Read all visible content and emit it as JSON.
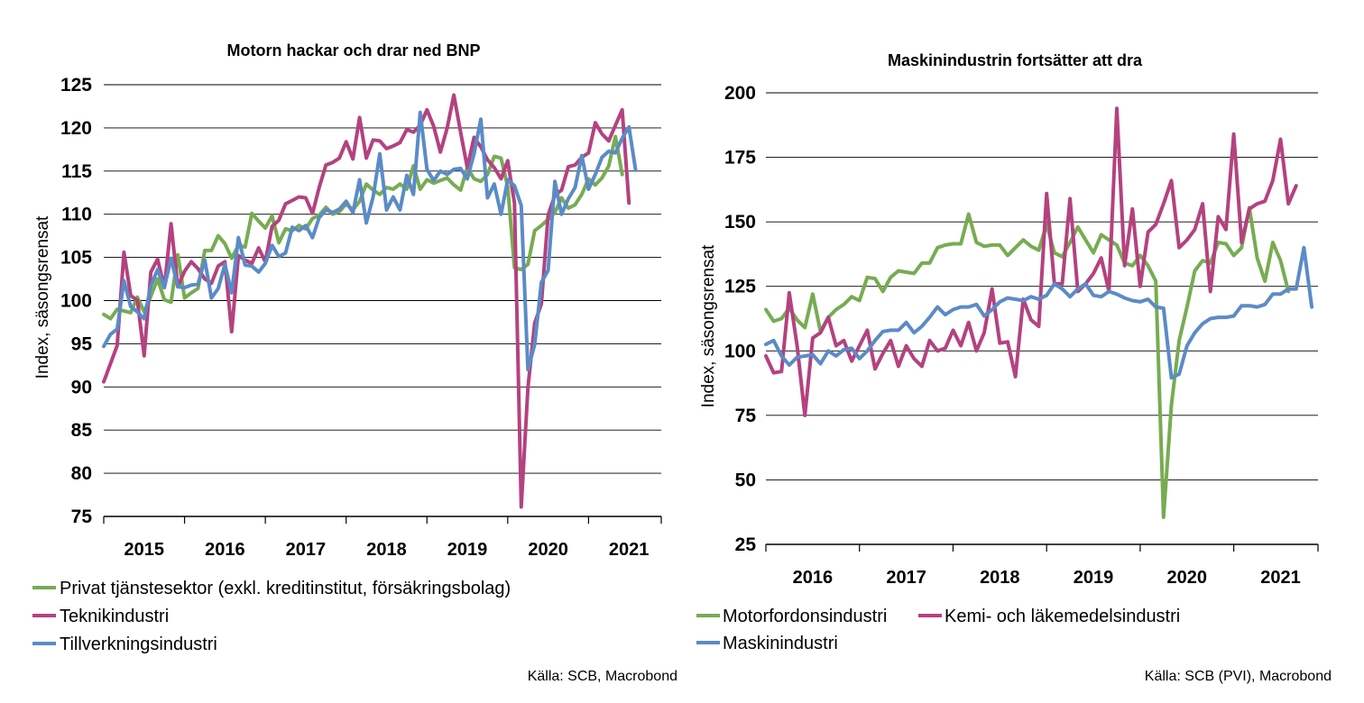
{
  "chart_data": [
    {
      "type": "line",
      "title": "Motorn hackar och drar ned BNP",
      "ylabel": "Index, säsongsrensat",
      "xlabel": "",
      "ylim": [
        75,
        125
      ],
      "yticks": [
        75,
        80,
        85,
        90,
        95,
        100,
        105,
        110,
        115,
        120,
        125
      ],
      "xlim": [
        2015.0,
        2021.9
      ],
      "year_labels": [
        "2015",
        "2016",
        "2017",
        "2018",
        "2019",
        "2020",
        "2021"
      ],
      "grid": true,
      "legend_position": "bottom",
      "source": "Källa: SCB, Macrobond",
      "x_start": "2015-01",
      "x_step": "month",
      "series": [
        {
          "name": "Privat tjänstesektor (exkl. kreditinstitut, försäkringsbolag)",
          "color": "#77ac52",
          "values": [
            98.4,
            97.9,
            99.0,
            98.8,
            98.6,
            100.4,
            98.7,
            100.5,
            102.5,
            100.1,
            99.8,
            105.3,
            100.3,
            100.9,
            101.4,
            105.8,
            105.8,
            107.5,
            106.6,
            104.9,
            106.4,
            106.2,
            110.1,
            109.2,
            108.4,
            109.8,
            106.7,
            108.3,
            108.1,
            108.7,
            108.3,
            109.5,
            109.9,
            110.8,
            110.0,
            110.3,
            111.2,
            110.5,
            111.5,
            113.5,
            112.8,
            112.3,
            113.1,
            112.9,
            113.5,
            112.9,
            115.6,
            112.9,
            114.0,
            113.6,
            113.9,
            114.2,
            113.4,
            112.8,
            115.4,
            114.1,
            113.8,
            114.6,
            116.7,
            116.5,
            113.2,
            103.8,
            103.6,
            104.2,
            108.1,
            108.7,
            109.4,
            110.2,
            111.9,
            110.7,
            111.1,
            112.3,
            114.1,
            113.4,
            114.2,
            115.6,
            119.0,
            114.6
          ]
        },
        {
          "name": "Teknikindustri",
          "color": "#b4427f",
          "values": [
            90.6,
            92.7,
            94.8,
            105.6,
            100.6,
            100.0,
            93.6,
            103.3,
            104.8,
            101.5,
            108.9,
            101.6,
            103.4,
            104.5,
            103.7,
            102.5,
            102.0,
            104.0,
            104.5,
            96.4,
            105.2,
            104.7,
            104.3,
            106.1,
            104.5,
            108.6,
            109.3,
            111.2,
            111.6,
            112.0,
            111.9,
            110.1,
            113.1,
            115.7,
            116.0,
            116.5,
            118.4,
            116.4,
            121.2,
            116.5,
            118.6,
            118.5,
            117.6,
            117.9,
            118.3,
            119.8,
            119.5,
            120.3,
            122.1,
            120.2,
            117.2,
            120.0,
            123.8,
            119.5,
            115.4,
            118.9,
            117.8,
            116.3,
            115.4,
            114.1,
            116.2,
            111.3,
            76.1,
            89.9,
            97.4,
            99.6,
            109.9,
            112.2,
            112.8,
            115.5,
            115.7,
            116.6,
            117.1,
            120.6,
            119.3,
            118.5,
            120.3,
            122.1,
            111.3
          ]
        },
        {
          "name": "Tillverkningsindustri",
          "color": "#5b8bc7",
          "values": [
            94.7,
            96.1,
            96.7,
            102.3,
            99.3,
            98.7,
            97.9,
            101.7,
            103.6,
            101.5,
            104.9,
            101.6,
            101.5,
            101.8,
            101.9,
            104.7,
            100.3,
            101.4,
            104.2,
            100.9,
            107.3,
            104.1,
            104.0,
            103.3,
            104.3,
            106.4,
            105.1,
            105.5,
            108.5,
            108.1,
            108.7,
            107.3,
            109.6,
            110.5,
            110.2,
            110.6,
            111.5,
            110.2,
            114.0,
            109.0,
            112.0,
            117.0,
            110.5,
            112.0,
            110.5,
            114.5,
            112.3,
            121.8,
            115.2,
            113.9,
            115.0,
            114.6,
            115.2,
            115.3,
            114.1,
            117.0,
            121.0,
            111.9,
            113.5,
            110.0,
            114.0,
            113.3,
            111.0,
            92.0,
            94.9,
            102.1,
            103.5,
            113.8,
            110.0,
            111.8,
            113.1,
            116.8,
            112.9,
            114.6,
            116.6,
            117.3,
            117.1,
            118.8,
            120.1,
            115.1
          ]
        }
      ]
    },
    {
      "type": "line",
      "title": "Maskinindustrin fortsätter att dra",
      "ylabel": "Index, säsongsrensat",
      "xlabel": "",
      "ylim": [
        25,
        200
      ],
      "yticks": [
        25,
        50,
        75,
        100,
        125,
        150,
        175,
        200
      ],
      "xlim": [
        2016.0,
        2021.9
      ],
      "year_labels": [
        "2016",
        "2017",
        "2018",
        "2019",
        "2020",
        "2021"
      ],
      "grid": true,
      "legend_position": "bottom",
      "source": "Källa: SCB (PVI), Macrobond",
      "x_start": "2016-01",
      "x_step": "month",
      "series": [
        {
          "name": "Motorfordonsindustri",
          "color": "#77ac52",
          "values": [
            116.0,
            111.5,
            112.5,
            116.5,
            112.0,
            109.0,
            122.0,
            107.5,
            113.0,
            116.0,
            118.0,
            121.0,
            119.5,
            128.5,
            128.0,
            123.0,
            128.5,
            131.0,
            130.5,
            130.0,
            134.0,
            134.0,
            140.0,
            141.0,
            141.5,
            141.5,
            153.0,
            142.0,
            140.5,
            141.0,
            141.0,
            137.0,
            140.0,
            143.0,
            140.5,
            139.0,
            149.0,
            138.0,
            136.5,
            142.0,
            148.0,
            143.0,
            138.0,
            145.0,
            143.0,
            141.0,
            134.0,
            133.0,
            137.0,
            133.0,
            127.0,
            35.5,
            79.0,
            104.0,
            117.0,
            131.0,
            135.0,
            134.0,
            142.0,
            141.5,
            137.0,
            140.0,
            155.5,
            136.0,
            127.0,
            142.0,
            135.0,
            123.0
          ]
        },
        {
          "name": "Kemi- och läkemedelsindustri",
          "color": "#b4427f",
          "values": [
            98.0,
            91.5,
            92.0,
            122.5,
            102.0,
            75.0,
            105.0,
            107.0,
            113.0,
            102.0,
            104.0,
            96.0,
            102.0,
            108.0,
            93.0,
            99.0,
            104.0,
            94.0,
            102.0,
            97.0,
            94.0,
            104.0,
            100.0,
            101.0,
            108.0,
            102.0,
            111.0,
            100.0,
            107.0,
            124.0,
            103.0,
            103.5,
            90.0,
            120.0,
            112.0,
            109.5,
            161.0,
            126.0,
            126.0,
            159.0,
            123.0,
            126.0,
            130.0,
            136.0,
            123.0,
            194.0,
            133.0,
            155.0,
            125.0,
            146.0,
            149.0,
            157.0,
            166.0,
            140.0,
            143.0,
            147.0,
            157.0,
            123.0,
            152.0,
            147.0,
            184.0,
            142.0,
            155.0,
            157.0,
            158.0,
            166.0,
            182.0,
            157.0,
            164.0
          ]
        },
        {
          "name": "Maskinindustri",
          "color": "#5b8bc7",
          "values": [
            102.5,
            104.0,
            98.0,
            94.5,
            97.5,
            98.0,
            98.5,
            95.0,
            100.0,
            98.0,
            100.5,
            101.0,
            97.0,
            100.0,
            104.0,
            107.5,
            108.0,
            108.0,
            111.0,
            107.0,
            109.5,
            113.0,
            117.0,
            114.0,
            116.0,
            117.0,
            117.0,
            118.0,
            113.5,
            116.0,
            119.0,
            120.5,
            120.0,
            119.5,
            121.0,
            120.0,
            121.5,
            126.0,
            124.0,
            121.0,
            124.0,
            126.0,
            121.5,
            121.0,
            123.0,
            122.0,
            120.5,
            119.5,
            119.0,
            120.0,
            117.0,
            116.5,
            89.5,
            91.0,
            102.0,
            107.0,
            110.5,
            112.5,
            113.0,
            113.0,
            113.5,
            117.5,
            117.5,
            117.0,
            118.0,
            122.0,
            122.0,
            124.0,
            124.0,
            140.0,
            117.0
          ]
        }
      ]
    }
  ]
}
